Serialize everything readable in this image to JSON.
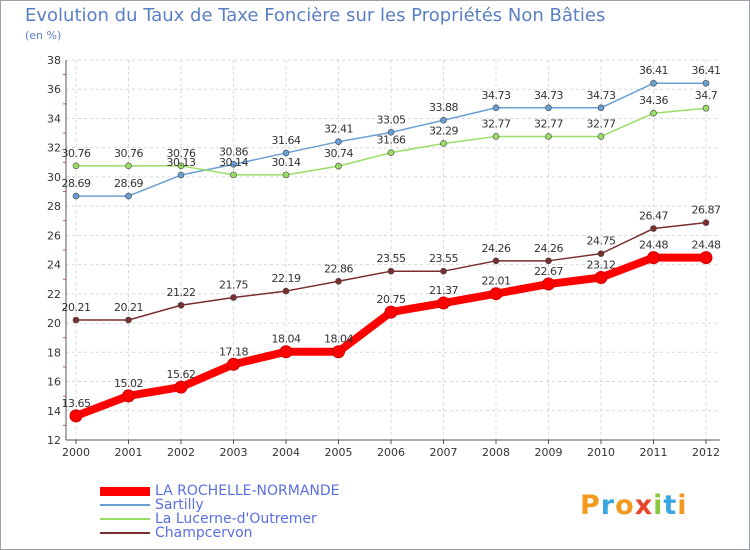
{
  "header": {
    "title": "Evolution du Taux de Taxe Foncière sur les Propriétés Non Bâties",
    "unit": "(en %)"
  },
  "logo": {
    "letters": [
      "P",
      "r",
      "o",
      "x",
      "i",
      "t",
      "i"
    ],
    "colors": [
      "#f29a1f",
      "#3aa7e0",
      "#f29a1f",
      "#e8452c",
      "#8cc63f",
      "#3aa7e0",
      "#f29a1f"
    ]
  },
  "chart_data": {
    "type": "line",
    "x": [
      "2000",
      "2001",
      "2002",
      "2003",
      "2004",
      "2005",
      "2006",
      "2007",
      "2008",
      "2009",
      "2010",
      "2011",
      "2012"
    ],
    "ylim": [
      12,
      38
    ],
    "yticks": [
      "12",
      "14",
      "16",
      "18",
      "20",
      "22",
      "24",
      "26",
      "28",
      "30",
      "32",
      "34",
      "36",
      "38"
    ],
    "grid": true,
    "legend_position": "bottom-left",
    "series": [
      {
        "name": "LA ROCHELLE-NORMANDE",
        "color": "#ff0000",
        "values": [
          13.65,
          15.02,
          15.62,
          17.18,
          18.04,
          18.04,
          20.75,
          21.37,
          22.01,
          22.67,
          23.12,
          24.48,
          24.48
        ],
        "labels": [
          "13.65",
          "15.02",
          "15.62",
          "17.18",
          "18.04",
          "18.04",
          "20.75",
          "21.37",
          "22.01",
          "22.67",
          "23.12",
          "24.48",
          "24.48"
        ]
      },
      {
        "name": "Sartilly",
        "color": "#6a9fd4",
        "values": [
          28.69,
          28.69,
          30.13,
          30.86,
          31.64,
          32.41,
          33.05,
          33.88,
          34.73,
          34.73,
          34.73,
          36.41,
          36.41
        ],
        "labels": [
          "28.69",
          "28.69",
          "30.13",
          "30.86",
          "31.64",
          "32.41",
          "33.05",
          "33.88",
          "34.73",
          "34.73",
          "34.73",
          "36.41",
          "36.41"
        ]
      },
      {
        "name": "La Lucerne-d'Outremer",
        "color": "#99dd66",
        "values": [
          30.76,
          30.76,
          30.76,
          30.14,
          30.14,
          30.74,
          31.66,
          32.29,
          32.77,
          32.77,
          32.77,
          34.36,
          34.7
        ],
        "labels": [
          "30.76",
          "30.76",
          "30.76",
          "30.14",
          "30.14",
          "30.74",
          "31.66",
          "32.29",
          "32.77",
          "32.77",
          "32.77",
          "34.36",
          "34.7"
        ]
      },
      {
        "name": "Champcervon",
        "color": "#7a2f2f",
        "values": [
          20.21,
          20.21,
          21.22,
          21.75,
          22.19,
          22.86,
          23.55,
          23.55,
          24.26,
          24.26,
          24.75,
          26.47,
          26.87
        ],
        "labels": [
          "20.21",
          "20.21",
          "21.22",
          "21.75",
          "22.19",
          "22.86",
          "23.55",
          "23.55",
          "24.26",
          "24.26",
          "24.75",
          "26.47",
          "26.87"
        ]
      }
    ]
  }
}
